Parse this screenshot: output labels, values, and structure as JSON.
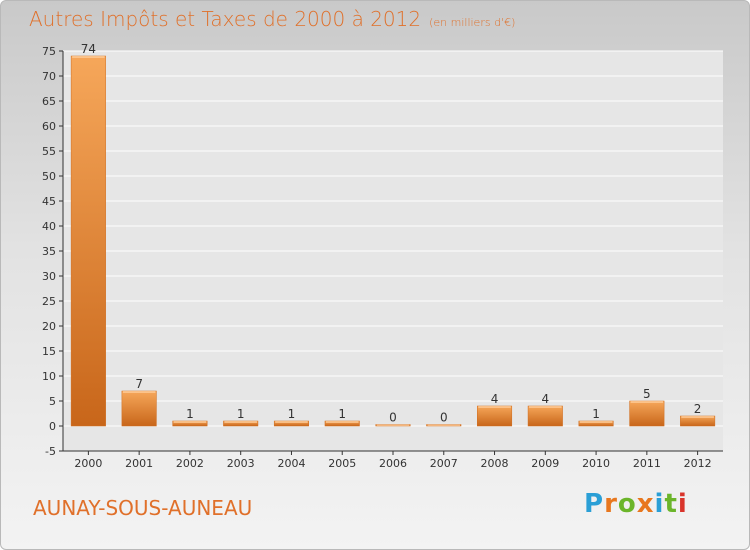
{
  "header": {
    "title": "Autres Impôts et Taxes de 2000 à 2012",
    "unit": "(en milliers d'€)"
  },
  "commune": "AUNAY-SOUS-AUNEAU",
  "logo": {
    "letters": [
      "P",
      "r",
      "o",
      "x",
      "i",
      "t",
      "i"
    ],
    "colors": [
      "#2a9fd6",
      "#e8771e",
      "#6bb52a",
      "#e8771e",
      "#2a9fd6",
      "#6bb52a",
      "#d9342b"
    ]
  },
  "colors": {
    "accent": "#e0702a",
    "bar_top": "#f6a75a",
    "bar_bottom": "#c8661a",
    "axis": "#333333",
    "grid": "#ffffff"
  },
  "chart_data": {
    "type": "bar",
    "title": "Autres Impôts et Taxes de 2000 à 2012",
    "subtitle": "(en milliers d'€)",
    "categories": [
      "2000",
      "2001",
      "2002",
      "2003",
      "2004",
      "2005",
      "2006",
      "2007",
      "2008",
      "2009",
      "2010",
      "2011",
      "2012"
    ],
    "values": [
      74,
      7,
      1,
      1,
      1,
      1,
      0,
      0,
      4,
      4,
      1,
      5,
      2
    ],
    "ylim": [
      -5,
      75
    ],
    "yticks": [
      -5,
      0,
      5,
      10,
      15,
      20,
      25,
      30,
      35,
      40,
      45,
      50,
      55,
      60,
      65,
      70,
      75
    ],
    "grid": true,
    "legend": "none"
  }
}
